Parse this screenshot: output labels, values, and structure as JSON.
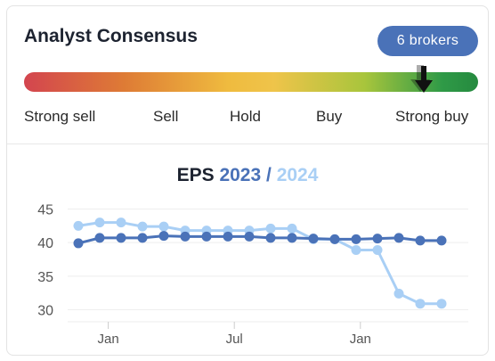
{
  "card": {
    "title": "Analyst Consensus",
    "brokers_badge": "6  brokers",
    "consensus_level": 0.88,
    "scale_labels": [
      "Strong sell",
      "Sell",
      "Hold",
      "Buy",
      "Strong buy"
    ]
  },
  "eps": {
    "label": "EPS",
    "year1": "2023",
    "separator": "/",
    "year2": "2024"
  },
  "colors": {
    "series_2023": "#4a72b8",
    "series_2024": "#a9cff5",
    "badge": "#4a72b8",
    "marker": "#111111"
  },
  "chart_data": {
    "type": "line",
    "title": "EPS 2023 / 2024",
    "xlabel": "",
    "ylabel": "",
    "ylim": [
      29,
      46
    ],
    "yticks": [
      30,
      35,
      40,
      45
    ],
    "xticks": [
      "Jan",
      "Jul",
      "Jan"
    ],
    "grid": true,
    "series": [
      {
        "name": "2023",
        "values": [
          39.9,
          40.7,
          40.7,
          40.7,
          41.0,
          40.9,
          40.9,
          40.9,
          40.9,
          40.7,
          40.7,
          40.6,
          40.5,
          40.5,
          40.6,
          40.7,
          40.3,
          40.3
        ]
      },
      {
        "name": "2024",
        "values": [
          42.5,
          43.0,
          43.0,
          42.4,
          42.4,
          41.8,
          41.8,
          41.8,
          41.8,
          42.1,
          42.1,
          40.5,
          40.5,
          38.9,
          38.9,
          32.4,
          30.9,
          30.9
        ]
      }
    ]
  }
}
